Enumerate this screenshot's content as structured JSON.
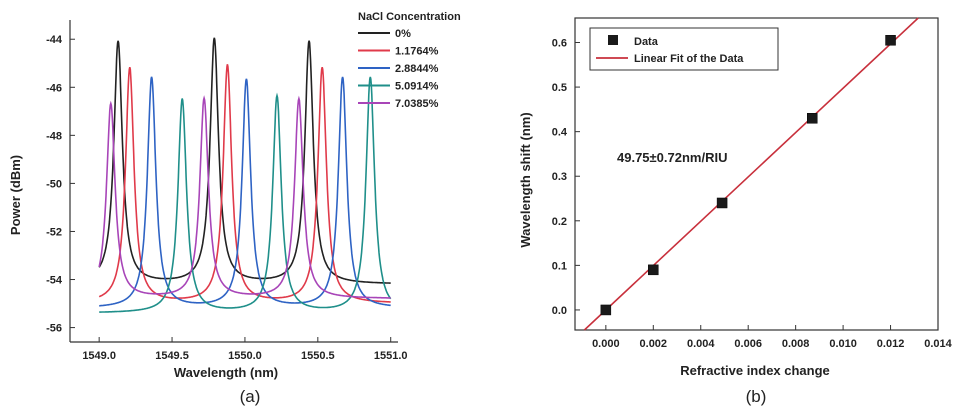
{
  "chart_data": [
    {
      "panel": "(a)",
      "type": "line",
      "xlabel": "Wavelength (nm)",
      "ylabel": "Power (dBm)",
      "xlim": [
        1548.8,
        1551.05
      ],
      "ylim": [
        -56.6,
        -43.2
      ],
      "x_ticks": [
        "1549.0",
        "1549.5",
        "1550.0",
        "1550.5",
        "1551.0"
      ],
      "y_ticks": [
        "-44",
        "-46",
        "-48",
        "-50",
        "-52",
        "-54",
        "-56"
      ],
      "legend_title": "NaCl Concentration",
      "legend_position": "top-right",
      "series": [
        {
          "name": "0%",
          "color": "#222222",
          "peaks": [
            1549.13,
            1549.79,
            1550.44
          ],
          "peak_values": [
            -44.1,
            -44.0,
            -44.1
          ],
          "baseline": -54.2
        },
        {
          "name": "1.1764%",
          "color": "#e03a4a",
          "peaks": [
            1549.21,
            1549.88,
            1550.53
          ],
          "peak_values": [
            -45.2,
            -45.1,
            -45.2
          ],
          "baseline": -55.0
        },
        {
          "name": "2.8844%",
          "color": "#2e63c4",
          "peaks": [
            1549.36,
            1550.01,
            1550.67
          ],
          "peak_values": [
            -45.6,
            -45.7,
            -45.6
          ],
          "baseline": -55.2
        },
        {
          "name": "5.0914%",
          "color": "#1f8f8a",
          "peaks": [
            1549.57,
            1550.22,
            1550.86
          ],
          "peak_values": [
            -46.5,
            -46.4,
            -45.6
          ],
          "baseline": -55.4
        },
        {
          "name": "7.0385%",
          "color": "#a845b8",
          "peaks": [
            1549.08,
            1549.72,
            1550.37
          ],
          "peak_values": [
            -46.7,
            -46.5,
            -46.5
          ],
          "baseline": -54.8
        }
      ],
      "x_range": [
        1549.0,
        1551.0
      ]
    },
    {
      "panel": "(b)",
      "type": "scatter",
      "xlabel": "Refractive index change",
      "ylabel": "Wavelength shift (nm)",
      "xlim": [
        -0.0013,
        0.014
      ],
      "ylim": [
        -0.045,
        0.655
      ],
      "x_ticks": [
        "0.000",
        "0.002",
        "0.004",
        "0.006",
        "0.008",
        "0.010",
        "0.012",
        "0.014"
      ],
      "y_ticks": [
        "0.0",
        "0.1",
        "0.2",
        "0.3",
        "0.4",
        "0.5",
        "0.6"
      ],
      "legend_position": "top-left",
      "annotation": "49.75±0.72nm/RIU",
      "series": [
        {
          "name": "Data",
          "color": "#1a1a1a",
          "x": [
            0.0,
            0.002,
            0.0049,
            0.0087,
            0.012
          ],
          "y": [
            0.0,
            0.09,
            0.24,
            0.43,
            0.605
          ]
        },
        {
          "name": "Linear Fit of the Data",
          "color": "#c8303c",
          "slope": 49.75,
          "intercept": 0.0
        }
      ]
    }
  ],
  "captions": {
    "a": "(a)",
    "b": "(b)"
  }
}
